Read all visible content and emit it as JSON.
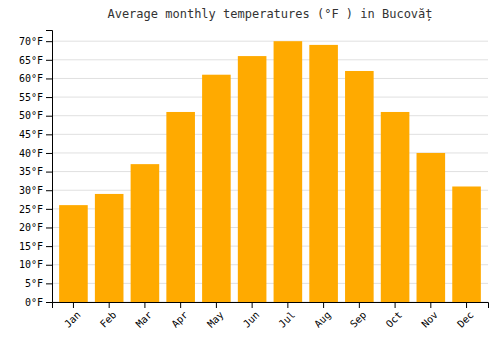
{
  "chart_data": {
    "type": "bar",
    "title": "Average monthly temperatures (°F ) in Bucovăț",
    "categories": [
      "Jan",
      "Feb",
      "Mar",
      "Apr",
      "May",
      "Jun",
      "Jul",
      "Aug",
      "Sep",
      "Oct",
      "Nov",
      "Dec"
    ],
    "values": [
      26,
      29,
      37,
      51,
      61,
      66,
      70,
      69,
      62,
      51,
      40,
      31
    ],
    "color": "#FFAA00",
    "ylim": [
      0,
      73
    ],
    "yticks": [
      {
        "value": 0,
        "label": "0°F"
      },
      {
        "value": 5,
        "label": "5°F"
      },
      {
        "value": 10,
        "label": "10°F"
      },
      {
        "value": 15,
        "label": "15°F"
      },
      {
        "value": 20,
        "label": "20°F"
      },
      {
        "value": 25,
        "label": "25°F"
      },
      {
        "value": 30,
        "label": "30°F"
      },
      {
        "value": 35,
        "label": "35°F"
      },
      {
        "value": 40,
        "label": "40°F"
      },
      {
        "value": 45,
        "label": "45°F"
      },
      {
        "value": 50,
        "label": "50°F"
      },
      {
        "value": 55,
        "label": "55°F"
      },
      {
        "value": 60,
        "label": "60°F"
      },
      {
        "value": 65,
        "label": "65°F"
      },
      {
        "value": 70,
        "label": "70°F"
      }
    ],
    "grid": true
  }
}
